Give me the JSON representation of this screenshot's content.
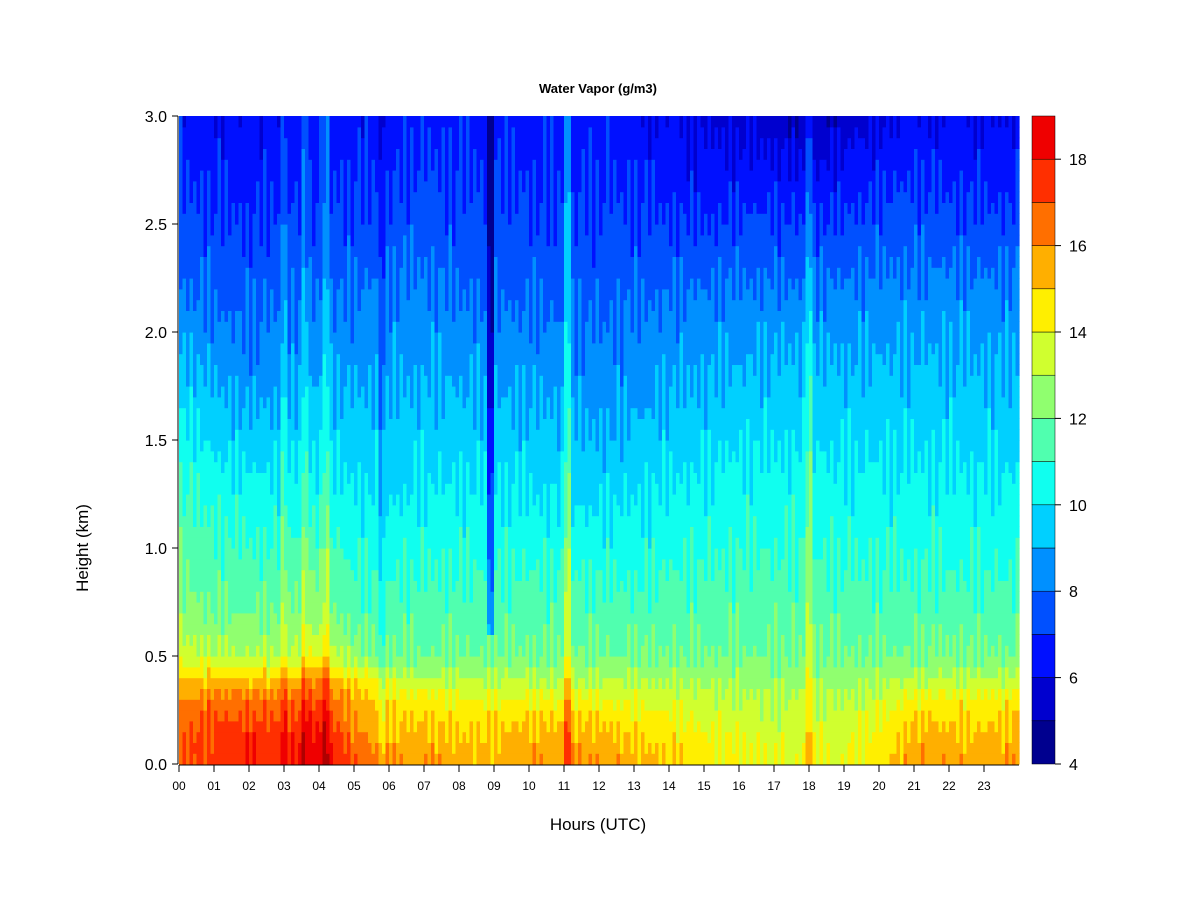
{
  "chart_data": {
    "type": "heatmap",
    "title": "Water Vapor (g/m3)",
    "xlabel": "Hours (UTC)",
    "ylabel": "Height (km)",
    "xlim": [
      0,
      24
    ],
    "ylim": [
      0.0,
      3.0
    ],
    "x_ticks": [
      "00",
      "01",
      "02",
      "03",
      "04",
      "05",
      "06",
      "07",
      "08",
      "09",
      "10",
      "11",
      "12",
      "13",
      "14",
      "15",
      "16",
      "17",
      "18",
      "19",
      "20",
      "21",
      "22",
      "23"
    ],
    "y_ticks": [
      "0.0",
      "0.5",
      "1.0",
      "1.5",
      "2.0",
      "2.5",
      "3.0"
    ],
    "heights_km": [
      0.0,
      0.1,
      0.2,
      0.3,
      0.4,
      0.5,
      0.7,
      0.9,
      1.1,
      1.3,
      1.5,
      1.7,
      1.9,
      2.1,
      2.3,
      2.5,
      2.7,
      2.9,
      3.0
    ],
    "profiles": [
      {
        "hour": 0,
        "values": [
          17.0,
          17.0,
          16.5,
          16.0,
          15.0,
          13.5,
          12.5,
          12.0,
          11.5,
          11.0,
          10.5,
          9.8,
          9.2,
          8.4,
          7.8,
          7.4,
          7.0,
          6.6,
          6.4
        ]
      },
      {
        "hour": 1,
        "values": [
          17.5,
          17.5,
          17.0,
          16.5,
          15.0,
          13.0,
          12.0,
          11.5,
          11.0,
          10.5,
          9.8,
          9.2,
          8.6,
          8.0,
          7.6,
          7.2,
          6.8,
          6.4,
          6.2
        ]
      },
      {
        "hour": 2,
        "values": [
          18.0,
          18.0,
          17.0,
          16.5,
          15.0,
          13.0,
          12.0,
          11.3,
          10.8,
          10.2,
          9.5,
          8.8,
          8.2,
          7.8,
          7.5,
          7.0,
          6.6,
          6.4,
          6.2
        ]
      },
      {
        "hour": 3,
        "values": [
          17.5,
          17.5,
          17.0,
          16.5,
          15.0,
          13.0,
          12.0,
          11.5,
          10.8,
          10.2,
          9.6,
          9.0,
          8.4,
          8.0,
          7.6,
          7.2,
          6.8,
          6.5,
          6.3
        ]
      },
      {
        "hour": 4,
        "values": [
          18.5,
          18.5,
          18.0,
          17.0,
          16.0,
          14.0,
          12.5,
          12.0,
          11.0,
          10.3,
          9.8,
          9.2,
          8.7,
          8.2,
          7.6,
          7.2,
          6.9,
          6.6,
          6.4
        ]
      },
      {
        "hour": 5,
        "values": [
          17.0,
          16.5,
          16.0,
          15.5,
          14.5,
          12.5,
          11.5,
          11.0,
          10.5,
          10.0,
          9.5,
          9.0,
          8.6,
          8.2,
          7.8,
          7.3,
          7.0,
          6.6,
          6.4
        ]
      },
      {
        "hour": 6,
        "values": [
          16.0,
          15.5,
          15.0,
          14.5,
          13.5,
          12.0,
          11.5,
          10.8,
          10.3,
          9.8,
          9.5,
          9.0,
          8.7,
          8.3,
          7.9,
          7.4,
          7.0,
          6.7,
          6.5
        ]
      },
      {
        "hour": 7,
        "values": [
          16.0,
          15.5,
          15.0,
          14.5,
          13.0,
          12.0,
          11.5,
          11.0,
          10.5,
          10.0,
          9.6,
          9.2,
          8.8,
          8.4,
          8.0,
          7.6,
          7.2,
          6.8,
          6.6
        ]
      },
      {
        "hour": 8,
        "values": [
          15.5,
          15.2,
          14.8,
          14.0,
          13.0,
          12.0,
          11.5,
          11.0,
          10.5,
          10.0,
          9.5,
          9.1,
          8.7,
          8.2,
          7.7,
          7.3,
          7.0,
          6.8,
          6.6
        ]
      },
      {
        "hour": 9,
        "values": [
          15.5,
          15.2,
          14.8,
          14.0,
          13.0,
          12.0,
          11.5,
          11.0,
          10.5,
          10.0,
          9.5,
          9.0,
          8.6,
          8.1,
          7.6,
          7.3,
          7.0,
          6.8,
          6.6
        ]
      },
      {
        "hour": 10,
        "values": [
          15.8,
          15.5,
          15.0,
          14.2,
          13.0,
          12.0,
          11.5,
          11.0,
          10.4,
          9.9,
          9.4,
          8.9,
          8.5,
          8.0,
          7.6,
          7.3,
          7.0,
          6.8,
          6.6
        ]
      },
      {
        "hour": 11,
        "values": [
          16.0,
          15.5,
          15.0,
          14.0,
          13.0,
          12.0,
          11.5,
          11.0,
          10.3,
          9.8,
          9.3,
          8.8,
          8.3,
          7.9,
          7.5,
          7.2,
          6.9,
          6.7,
          6.5
        ]
      },
      {
        "hour": 12,
        "values": [
          16.0,
          15.5,
          15.0,
          14.0,
          13.0,
          12.0,
          11.5,
          10.8,
          10.2,
          9.6,
          9.1,
          8.6,
          8.2,
          7.8,
          7.5,
          7.2,
          6.9,
          6.7,
          6.5
        ]
      },
      {
        "hour": 13,
        "values": [
          15.5,
          15.0,
          14.5,
          13.8,
          12.8,
          12.0,
          11.4,
          10.8,
          10.2,
          9.8,
          9.3,
          8.8,
          8.4,
          8.0,
          7.6,
          7.2,
          6.8,
          6.5,
          6.3
        ]
      },
      {
        "hour": 14,
        "values": [
          15.0,
          14.8,
          14.3,
          13.6,
          12.8,
          12.0,
          11.5,
          11.0,
          10.5,
          10.0,
          9.5,
          9.0,
          8.6,
          8.2,
          7.7,
          7.1,
          6.6,
          6.2,
          6.0
        ]
      },
      {
        "hour": 15,
        "values": [
          14.5,
          14.2,
          13.8,
          13.4,
          12.7,
          12.0,
          11.5,
          11.0,
          10.6,
          10.2,
          9.7,
          9.2,
          8.8,
          8.3,
          7.6,
          7.0,
          6.4,
          6.0,
          5.8
        ]
      },
      {
        "hour": 16,
        "values": [
          14.2,
          14.0,
          13.6,
          13.2,
          12.6,
          12.0,
          11.6,
          11.2,
          10.7,
          10.3,
          9.8,
          9.3,
          8.9,
          8.4,
          7.8,
          7.2,
          6.5,
          6.0,
          5.6
        ]
      },
      {
        "hour": 17,
        "values": [
          13.8,
          13.6,
          13.3,
          13.0,
          12.5,
          12.0,
          11.6,
          11.2,
          10.8,
          10.4,
          9.9,
          9.4,
          9.0,
          8.5,
          7.8,
          7.2,
          6.5,
          5.8,
          5.4
        ]
      },
      {
        "hour": 18,
        "values": [
          14.0,
          13.8,
          13.5,
          13.2,
          12.6,
          12.0,
          11.6,
          11.2,
          10.8,
          10.4,
          9.9,
          9.4,
          9.0,
          8.4,
          7.7,
          7.0,
          6.2,
          5.4,
          5.0
        ]
      },
      {
        "hour": 19,
        "values": [
          14.0,
          13.8,
          13.5,
          13.0,
          12.5,
          12.0,
          11.5,
          11.0,
          10.6,
          10.2,
          9.8,
          9.4,
          9.0,
          8.4,
          7.8,
          7.2,
          6.5,
          5.8,
          5.4
        ]
      },
      {
        "hour": 20,
        "values": [
          14.8,
          14.4,
          14.0,
          13.5,
          12.8,
          12.0,
          11.5,
          11.0,
          10.6,
          10.2,
          9.8,
          9.4,
          9.0,
          8.6,
          8.0,
          7.4,
          6.8,
          6.2,
          5.8
        ]
      },
      {
        "hour": 21,
        "values": [
          16.0,
          15.5,
          15.0,
          14.2,
          13.0,
          12.0,
          11.5,
          11.0,
          10.6,
          10.2,
          9.8,
          9.4,
          9.0,
          8.6,
          8.0,
          7.5,
          7.0,
          6.5,
          6.2
        ]
      },
      {
        "hour": 22,
        "values": [
          15.8,
          15.5,
          15.0,
          14.3,
          13.2,
          12.2,
          11.5,
          11.0,
          10.6,
          10.2,
          9.8,
          9.4,
          9.0,
          8.6,
          8.0,
          7.4,
          6.8,
          6.3,
          6.0
        ]
      },
      {
        "hour": 23,
        "values": [
          15.5,
          15.2,
          14.8,
          14.2,
          13.0,
          12.0,
          11.4,
          10.9,
          10.5,
          10.1,
          9.7,
          9.3,
          8.9,
          8.5,
          7.9,
          7.3,
          6.7,
          6.3,
          6.0
        ]
      },
      {
        "hour": 24,
        "values": [
          16.0,
          15.6,
          15.2,
          14.5,
          13.2,
          12.0,
          11.4,
          10.9,
          10.5,
          10.1,
          9.7,
          9.3,
          8.9,
          8.5,
          7.9,
          7.3,
          6.7,
          6.3,
          6.0
        ]
      }
    ],
    "vertical_features": [
      {
        "hour": 3.0,
        "delta": 0.8
      },
      {
        "hour": 3.6,
        "delta": 1.0
      },
      {
        "hour": 4.2,
        "delta": 1.2
      },
      {
        "hour": 5.8,
        "delta": -0.8
      },
      {
        "hour": 8.9,
        "delta": -3.0,
        "from_km": 0.6
      },
      {
        "hour": 11.1,
        "delta": 2.0,
        "from_km": 0.0
      },
      {
        "hour": 18.0,
        "delta": 1.5,
        "from_km": 0.0
      }
    ],
    "colorbar": {
      "min": 4,
      "max": 19,
      "levels": [
        4,
        5,
        6,
        7,
        8,
        9,
        10,
        11,
        12,
        13,
        14,
        15,
        16,
        17,
        18,
        19
      ],
      "tick_labels": [
        "4",
        "6",
        "8",
        "10",
        "12",
        "14",
        "16",
        "18"
      ],
      "colors": [
        "#00008F",
        "#0000CF",
        "#0010FF",
        "#0050FF",
        "#0090FF",
        "#00D0FF",
        "#10FFEF",
        "#50FFAF",
        "#90FF6F",
        "#D0FF2F",
        "#FFEF00",
        "#FFAF00",
        "#FF6F00",
        "#FF2F00",
        "#EF0000",
        "#AF0000",
        "#800000"
      ]
    }
  }
}
